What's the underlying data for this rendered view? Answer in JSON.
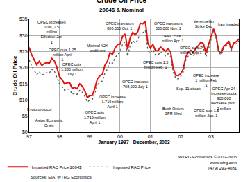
{
  "chart_data": {
    "type": "line",
    "title": "Crude Oil Price",
    "subtitle": "2004$ & Nominal",
    "x_label": "January 1997 - December, 2003",
    "y_label": "Crude Oil Price",
    "categories": [
      "97",
      null,
      null,
      null,
      null,
      null,
      null,
      null,
      null,
      null,
      null,
      null,
      "98",
      null,
      null,
      null,
      null,
      null,
      null,
      null,
      null,
      null,
      null,
      null,
      "99",
      null,
      null,
      null,
      null,
      null,
      null,
      null,
      null,
      null,
      null,
      null,
      "00",
      null,
      null,
      null,
      null,
      null,
      null,
      null,
      null,
      null,
      null,
      null,
      "01",
      null,
      null,
      null,
      null,
      null,
      null,
      null,
      null,
      null,
      null,
      null,
      "02",
      null,
      null,
      null,
      null,
      null,
      null,
      null,
      null,
      null,
      null,
      null,
      "03",
      null,
      null,
      null,
      null,
      null,
      null,
      null,
      null,
      null,
      null,
      null
    ],
    "series": [
      {
        "name": "Imported RAC Price 2004$",
        "color": "#e3120b",
        "line_style": "solid",
        "values": [
          26.3,
          24.0,
          22.5,
          20.9,
          22.0,
          20.7,
          21.3,
          21.6,
          21.4,
          22.9,
          22.1,
          20.0,
          17.3,
          16.4,
          15.0,
          15.3,
          15.4,
          13.6,
          13.9,
          13.5,
          15.0,
          14.3,
          12.9,
          10.8,
          11.3,
          11.4,
          13.6,
          16.6,
          17.5,
          18.0,
          20.8,
          22.1,
          24.7,
          24.1,
          26.1,
          27.2,
          27.3,
          29.8,
          30.5,
          25.7,
          29.3,
          31.0,
          30.2,
          31.2,
          33.8,
          33.6,
          34.4,
          27.6,
          26.1,
          27.2,
          25.3,
          25.3,
          26.4,
          25.8,
          25.1,
          25.9,
          24.9,
          19.9,
          17.7,
          17.5,
          18.2,
          19.6,
          23.4,
          24.9,
          25.4,
          24.8,
          26.0,
          26.9,
          28.0,
          27.4,
          24.6,
          27.2,
          29.6,
          32.1,
          29.8,
          25.2,
          24.5,
          26.6,
          27.2,
          28.3,
          25.8,
          27.7,
          28.1,
          28.9
        ]
      },
      {
        "name": "Imported RAC Price",
        "color": "#555555",
        "line_style": "dotted",
        "values": [
          22.5,
          20.5,
          19.2,
          17.9,
          18.8,
          17.7,
          18.2,
          18.5,
          18.3,
          19.6,
          18.9,
          17.1,
          15.0,
          14.3,
          13.0,
          13.3,
          13.4,
          11.8,
          12.1,
          11.7,
          13.0,
          12.4,
          11.2,
          9.4,
          10.0,
          10.1,
          12.0,
          14.7,
          15.5,
          15.9,
          18.4,
          19.6,
          21.9,
          21.3,
          23.1,
          24.1,
          25.0,
          27.3,
          28.0,
          23.6,
          26.9,
          28.4,
          27.7,
          28.6,
          31.0,
          30.8,
          31.6,
          25.3,
          24.6,
          25.7,
          23.9,
          23.9,
          24.9,
          24.3,
          23.7,
          24.4,
          23.5,
          18.8,
          16.7,
          16.5,
          17.3,
          18.7,
          22.3,
          23.7,
          24.2,
          23.6,
          24.8,
          25.6,
          26.7,
          26.1,
          23.4,
          25.9,
          29.0,
          31.5,
          29.2,
          24.7,
          24.0,
          26.1,
          26.7,
          27.7,
          25.3,
          27.2,
          27.5,
          28.3
        ]
      }
    ],
    "ylim": [
      0,
      35
    ],
    "yticks": [
      {
        "value": 0,
        "label": "$0"
      },
      {
        "value": 5,
        "label": "$5"
      },
      {
        "value": 10,
        "label": "$10"
      },
      {
        "value": 15,
        "label": "$15"
      },
      {
        "value": 20,
        "label": "$20"
      },
      {
        "value": 25,
        "label": "$25"
      },
      {
        "value": 30,
        "label": "$30"
      },
      {
        "value": 35,
        "label": "$35"
      }
    ],
    "grid": true,
    "legend": "bottom",
    "annotations": [
      "OPEC increases 10%, 2.5 million Effective Jan 1",
      "Asian Economic Crisis",
      "Kyoto protocol",
      "OPEC cuts 1.25 million April 1",
      "OPEC cuts 1.335 million July 1",
      "OPEC increase 1.719 million April 1",
      "OPEC cuts 1.719 million April 1",
      "Minimal Y2K problems",
      "OPEC increases 800,000 Oct. 1",
      "OPEC increase 708,000 July 1",
      "OPEC cuts 1.5 million Feb. 1",
      "OPEC increases 500,000 Nov. 1",
      "OPEC cuts 1 million Apr. 1",
      "OPEC cuts 1 million Sep 1",
      "Sep. 11 attack",
      "Bush Orders SPR filled",
      "OPEC cuts 1.5 million Jan. 1",
      "Venezuelan Strike Dec",
      "Iraq Invaded",
      "OPEC increase 1 million Feb 1",
      "OPEC Apr 24 increase quota 900,000 decrease prod. 2 million"
    ],
    "source": "Sources: EIA, WTRG Economics",
    "credit": [
      "WTRG Economics ©2003-2005",
      "www.wtrg.com",
      "(479) 293-4081"
    ]
  }
}
